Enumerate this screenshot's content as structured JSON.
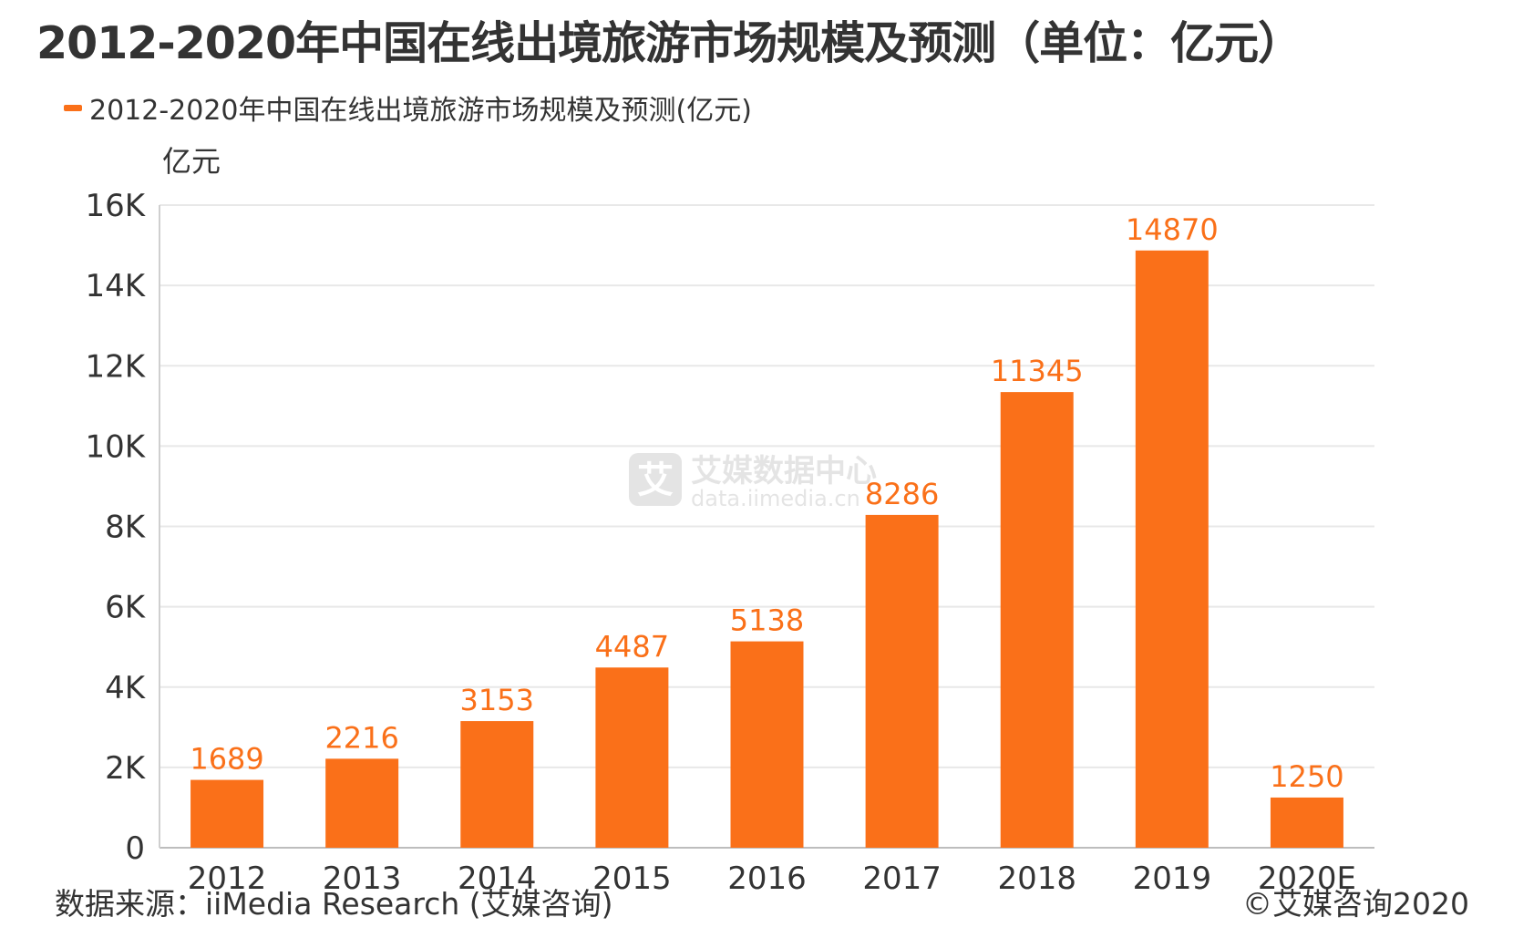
{
  "watermark": {
    "name": "艾媒数据中心",
    "url": "data.iimedia.cn"
  },
  "footer": {
    "source": "数据来源：iiMedia Research (艾媒咨询)",
    "copyright": "©艾媒咨询2020"
  },
  "colors": {
    "bar": "#fa7019",
    "label": "#fa7019",
    "grid": "#e8e8e8",
    "axis_text": "#333333"
  },
  "chart_data": {
    "type": "bar",
    "title": "2012-2020年中国在线出境旅游市场规模及预测（单位：亿元）",
    "legend_position": "top-left",
    "ylabel": "亿元",
    "xlabel": "",
    "ylim": [
      0,
      16000
    ],
    "grid": true,
    "yticks": [
      0,
      2000,
      4000,
      6000,
      8000,
      10000,
      12000,
      14000,
      16000
    ],
    "ytick_labels": [
      "0",
      "2K",
      "4K",
      "6K",
      "8K",
      "10K",
      "12K",
      "14K",
      "16K"
    ],
    "categories": [
      "2012",
      "2013",
      "2014",
      "2015",
      "2016",
      "2017",
      "2018",
      "2019",
      "2020E"
    ],
    "series": [
      {
        "name": "2012-2020年中国在线出境旅游市场规模及预测(亿元)",
        "values": [
          1689,
          2216,
          3153,
          4487,
          5138,
          8286,
          11345,
          14870,
          1250
        ]
      }
    ]
  }
}
